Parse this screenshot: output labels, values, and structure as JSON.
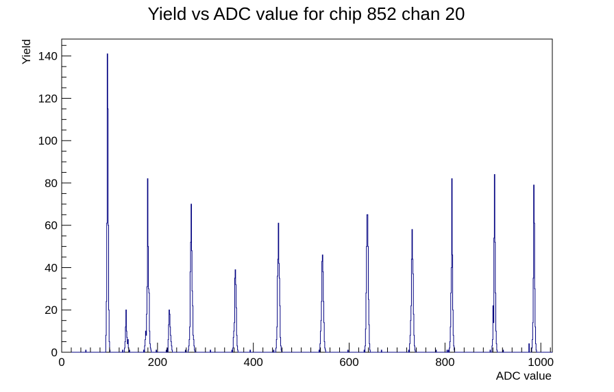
{
  "chart_data": {
    "type": "histogram",
    "title": "Yield vs ADC value for chip 852 chan 20",
    "xlabel": "ADC value",
    "ylabel": "Yield",
    "xlim": [
      0,
      1024
    ],
    "ylim": [
      0,
      148
    ],
    "x_ticks": [
      0,
      200,
      400,
      600,
      800,
      1000
    ],
    "y_ticks": [
      0,
      20,
      40,
      60,
      80,
      100,
      120,
      140
    ],
    "grid": false,
    "legend": "none",
    "line_color": "#000080",
    "series": [
      {
        "points": [
          [
            50,
            1
          ],
          [
            92,
            8
          ],
          [
            93,
            24
          ],
          [
            94,
            61
          ],
          [
            95,
            141
          ],
          [
            96,
            115
          ],
          [
            97,
            60
          ],
          [
            98,
            20
          ],
          [
            99,
            5
          ],
          [
            100,
            1
          ],
          [
            127,
            1
          ],
          [
            131,
            2
          ],
          [
            132,
            5
          ],
          [
            133,
            12
          ],
          [
            134,
            20
          ],
          [
            135,
            10
          ],
          [
            136,
            7
          ],
          [
            137,
            4
          ],
          [
            138,
            6
          ],
          [
            139,
            2
          ],
          [
            141,
            1
          ],
          [
            171,
            1
          ],
          [
            173,
            3
          ],
          [
            174,
            6
          ],
          [
            175,
            10
          ],
          [
            176,
            8
          ],
          [
            177,
            18
          ],
          [
            178,
            31
          ],
          [
            179,
            82
          ],
          [
            180,
            50
          ],
          [
            181,
            30
          ],
          [
            182,
            28
          ],
          [
            183,
            10
          ],
          [
            184,
            4
          ],
          [
            185,
            2
          ],
          [
            186,
            1
          ],
          [
            197,
            1
          ],
          [
            218,
            1
          ],
          [
            220,
            2
          ],
          [
            222,
            6
          ],
          [
            223,
            13
          ],
          [
            224,
            20
          ],
          [
            225,
            18
          ],
          [
            226,
            12
          ],
          [
            227,
            8
          ],
          [
            228,
            5
          ],
          [
            229,
            3
          ],
          [
            230,
            1
          ],
          [
            258,
            1
          ],
          [
            264,
            1
          ],
          [
            265,
            3
          ],
          [
            266,
            6
          ],
          [
            267,
            12
          ],
          [
            268,
            38
          ],
          [
            269,
            52
          ],
          [
            270,
            70
          ],
          [
            271,
            48
          ],
          [
            272,
            29
          ],
          [
            273,
            22
          ],
          [
            274,
            8
          ],
          [
            275,
            6
          ],
          [
            276,
            3
          ],
          [
            277,
            1
          ],
          [
            310,
            1
          ],
          [
            355,
            1
          ],
          [
            357,
            2
          ],
          [
            358,
            7
          ],
          [
            359,
            10
          ],
          [
            360,
            14
          ],
          [
            361,
            35
          ],
          [
            362,
            39
          ],
          [
            363,
            32
          ],
          [
            364,
            21
          ],
          [
            365,
            8
          ],
          [
            366,
            3
          ],
          [
            367,
            1
          ],
          [
            393,
            1
          ],
          [
            442,
            1
          ],
          [
            447,
            2
          ],
          [
            448,
            6
          ],
          [
            449,
            12
          ],
          [
            450,
            36
          ],
          [
            451,
            44
          ],
          [
            452,
            61
          ],
          [
            453,
            42
          ],
          [
            454,
            35
          ],
          [
            455,
            22
          ],
          [
            456,
            7
          ],
          [
            457,
            3
          ],
          [
            458,
            1
          ],
          [
            537,
            1
          ],
          [
            539,
            4
          ],
          [
            540,
            10
          ],
          [
            541,
            15
          ],
          [
            542,
            24
          ],
          [
            543,
            43
          ],
          [
            544,
            46
          ],
          [
            545,
            38
          ],
          [
            546,
            24
          ],
          [
            547,
            14
          ],
          [
            548,
            5
          ],
          [
            549,
            2
          ],
          [
            550,
            1
          ],
          [
            597,
            1
          ],
          [
            631,
            1
          ],
          [
            633,
            3
          ],
          [
            634,
            11
          ],
          [
            635,
            28
          ],
          [
            636,
            50
          ],
          [
            637,
            65
          ],
          [
            638,
            65
          ],
          [
            639,
            50
          ],
          [
            640,
            25
          ],
          [
            641,
            13
          ],
          [
            642,
            4
          ],
          [
            643,
            1
          ],
          [
            667,
            1
          ],
          [
            724,
            1
          ],
          [
            726,
            4
          ],
          [
            727,
            8
          ],
          [
            728,
            15
          ],
          [
            729,
            22
          ],
          [
            730,
            44
          ],
          [
            731,
            58
          ],
          [
            732,
            44
          ],
          [
            733,
            37
          ],
          [
            734,
            18
          ],
          [
            735,
            8
          ],
          [
            736,
            3
          ],
          [
            737,
            1
          ],
          [
            781,
            1
          ],
          [
            804,
            1
          ],
          [
            807,
            1
          ],
          [
            809,
            2
          ],
          [
            810,
            5
          ],
          [
            811,
            12
          ],
          [
            812,
            28
          ],
          [
            813,
            40
          ],
          [
            814,
            82
          ],
          [
            815,
            46
          ],
          [
            816,
            20
          ],
          [
            817,
            8
          ],
          [
            818,
            3
          ],
          [
            819,
            1
          ],
          [
            894,
            1
          ],
          [
            898,
            3
          ],
          [
            899,
            6
          ],
          [
            900,
            22
          ],
          [
            901,
            14
          ],
          [
            902,
            54
          ],
          [
            903,
            84
          ],
          [
            904,
            52
          ],
          [
            905,
            28
          ],
          [
            906,
            10
          ],
          [
            907,
            4
          ],
          [
            908,
            1
          ],
          [
            921,
            1
          ],
          [
            975,
            4
          ],
          [
            981,
            2
          ],
          [
            982,
            6
          ],
          [
            983,
            14
          ],
          [
            984,
            35
          ],
          [
            985,
            79
          ],
          [
            986,
            61
          ],
          [
            987,
            30
          ],
          [
            988,
            12
          ],
          [
            989,
            4
          ],
          [
            990,
            1
          ]
        ]
      }
    ]
  }
}
